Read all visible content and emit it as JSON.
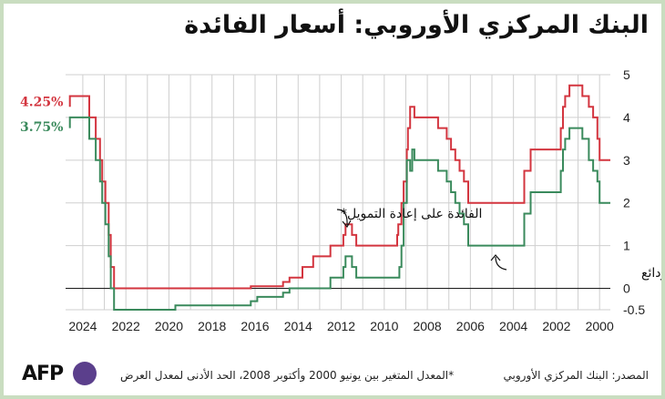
{
  "title": "البنك المركزي الأوروبي: أسعار الفائدة",
  "colors": {
    "refinancing": "#d3353f",
    "deposit": "#3a8a5c",
    "grid": "#cfcfcf",
    "zero": "#222222"
  },
  "footer": {
    "logo": "AFP",
    "note": "*المعدل المتغير بين يونيو 2000 وأكتوبر 2008، الحد الأدنى لمعدل العرض",
    "source": "المصدر: البنك المركزي الأوروبي"
  },
  "chart_data": {
    "type": "line",
    "x_axis": {
      "ticks": [
        "2024",
        "2022",
        "2020",
        "2018",
        "2016",
        "2014",
        "2012",
        "2010",
        "2008",
        "2006",
        "2004",
        "2002",
        "2000"
      ],
      "reversed": true
    },
    "y_axis": {
      "ticks": [
        "5",
        "4",
        "3",
        "2",
        "1",
        "0",
        "-0.5"
      ],
      "range": [
        -0.5,
        5
      ],
      "position": "right"
    },
    "grid": true,
    "end_labels": {
      "refinancing": "4.25%",
      "deposit": "3.75%"
    },
    "annotations": {
      "refinancing": "الفائدة على إعادة التمويل*",
      "deposit": "الفائدة على الودائع"
    },
    "series": [
      {
        "key": "refinancing",
        "points": [
          [
            1999.5,
            3.0
          ],
          [
            1999.9,
            3.0
          ],
          [
            2000.0,
            3.5
          ],
          [
            2000.1,
            4.0
          ],
          [
            2000.3,
            4.25
          ],
          [
            2000.5,
            4.5
          ],
          [
            2000.8,
            4.75
          ],
          [
            2001.35,
            4.75
          ],
          [
            2001.4,
            4.5
          ],
          [
            2001.6,
            4.25
          ],
          [
            2001.7,
            3.75
          ],
          [
            2001.8,
            3.25
          ],
          [
            2002.9,
            3.25
          ],
          [
            2003.2,
            2.75
          ],
          [
            2003.5,
            2.0
          ],
          [
            2005.9,
            2.0
          ],
          [
            2006.1,
            2.5
          ],
          [
            2006.3,
            2.75
          ],
          [
            2006.5,
            3.0
          ],
          [
            2006.7,
            3.25
          ],
          [
            2006.9,
            3.5
          ],
          [
            2007.1,
            3.75
          ],
          [
            2007.5,
            4.0
          ],
          [
            2008.5,
            4.0
          ],
          [
            2008.6,
            4.25
          ],
          [
            2008.8,
            3.75
          ],
          [
            2008.9,
            3.25
          ],
          [
            2008.95,
            2.5
          ],
          [
            2009.1,
            2.0
          ],
          [
            2009.2,
            1.5
          ],
          [
            2009.35,
            1.25
          ],
          [
            2009.4,
            1.0
          ],
          [
            2011.2,
            1.0
          ],
          [
            2011.3,
            1.25
          ],
          [
            2011.5,
            1.5
          ],
          [
            2011.8,
            1.25
          ],
          [
            2011.9,
            1.0
          ],
          [
            2012.5,
            0.75
          ],
          [
            2013.3,
            0.5
          ],
          [
            2013.8,
            0.25
          ],
          [
            2014.4,
            0.15
          ],
          [
            2014.7,
            0.05
          ],
          [
            2016.2,
            0.0
          ],
          [
            2022.5,
            0.0
          ],
          [
            2022.55,
            0.5
          ],
          [
            2022.7,
            1.25
          ],
          [
            2022.8,
            2.0
          ],
          [
            2022.95,
            2.5
          ],
          [
            2023.1,
            3.0
          ],
          [
            2023.2,
            3.5
          ],
          [
            2023.4,
            4.0
          ],
          [
            2023.7,
            4.5
          ],
          [
            2024.5,
            4.5
          ],
          [
            2024.6,
            4.25
          ]
        ]
      },
      {
        "key": "deposit",
        "points": [
          [
            1999.5,
            2.0
          ],
          [
            1999.8,
            2.0
          ],
          [
            2000.0,
            2.5
          ],
          [
            2000.1,
            2.75
          ],
          [
            2000.3,
            3.0
          ],
          [
            2000.5,
            3.5
          ],
          [
            2000.8,
            3.75
          ],
          [
            2001.35,
            3.75
          ],
          [
            2001.4,
            3.5
          ],
          [
            2001.6,
            3.25
          ],
          [
            2001.7,
            2.75
          ],
          [
            2001.8,
            2.25
          ],
          [
            2002.9,
            2.25
          ],
          [
            2003.2,
            1.75
          ],
          [
            2003.5,
            1.0
          ],
          [
            2005.9,
            1.0
          ],
          [
            2006.1,
            1.5
          ],
          [
            2006.3,
            1.75
          ],
          [
            2006.5,
            2.0
          ],
          [
            2006.7,
            2.25
          ],
          [
            2006.9,
            2.5
          ],
          [
            2007.1,
            2.75
          ],
          [
            2007.5,
            3.0
          ],
          [
            2008.5,
            3.0
          ],
          [
            2008.6,
            3.25
          ],
          [
            2008.7,
            2.75
          ],
          [
            2008.8,
            3.0
          ],
          [
            2008.95,
            2.0
          ],
          [
            2009.1,
            1.0
          ],
          [
            2009.2,
            0.5
          ],
          [
            2009.3,
            0.25
          ],
          [
            2011.2,
            0.25
          ],
          [
            2011.3,
            0.5
          ],
          [
            2011.5,
            0.75
          ],
          [
            2011.8,
            0.5
          ],
          [
            2011.9,
            0.25
          ],
          [
            2012.5,
            0.0
          ],
          [
            2014.4,
            -0.1
          ],
          [
            2014.7,
            -0.2
          ],
          [
            2015.9,
            -0.3
          ],
          [
            2016.2,
            -0.4
          ],
          [
            2019.7,
            -0.5
          ],
          [
            2022.5,
            -0.5
          ],
          [
            2022.55,
            0.0
          ],
          [
            2022.7,
            0.75
          ],
          [
            2022.8,
            1.5
          ],
          [
            2022.95,
            2.0
          ],
          [
            2023.1,
            2.5
          ],
          [
            2023.2,
            3.0
          ],
          [
            2023.4,
            3.5
          ],
          [
            2023.7,
            4.0
          ],
          [
            2024.5,
            4.0
          ],
          [
            2024.6,
            3.75
          ]
        ]
      }
    ]
  }
}
